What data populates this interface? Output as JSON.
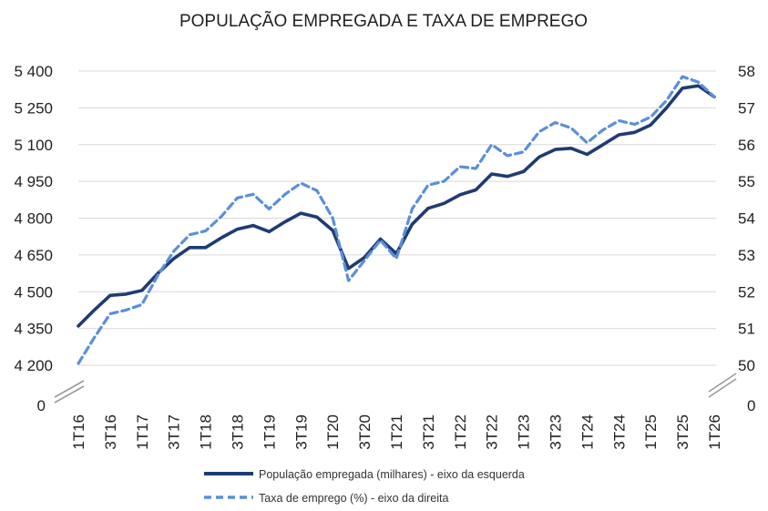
{
  "chart_data": {
    "type": "line",
    "title": "POPULAÇÃO EMPREGADA E TAXA DE EMPREGO",
    "x": [
      "1T16",
      "2T16",
      "3T16",
      "4T16",
      "1T17",
      "2T17",
      "3T17",
      "4T17",
      "1T18",
      "2T18",
      "3T18",
      "4T18",
      "1T19",
      "2T19",
      "3T19",
      "4T19",
      "1T20",
      "2T20",
      "3T20",
      "4T20",
      "1T21",
      "2T21",
      "3T21",
      "4T21",
      "1T22",
      "2T22",
      "3T22",
      "4T22",
      "1T23",
      "2T23",
      "3T23",
      "4T23",
      "1T24",
      "2T24",
      "3T24",
      "4T24",
      "1T25",
      "2T25",
      "3T25",
      "4T25",
      "1T26"
    ],
    "x_tick_labels": [
      "1T16",
      "3T16",
      "1T17",
      "3T17",
      "1T18",
      "3T18",
      "1T19",
      "3T19",
      "1T20",
      "3T20",
      "1T21",
      "3T21",
      "1T22",
      "3T22",
      "1T23",
      "3T23",
      "1T24",
      "3T24",
      "1T25",
      "3T25",
      "1T26"
    ],
    "y_left": {
      "ticks": [
        "4 200",
        "4 350",
        "4 500",
        "4 650",
        "4 800",
        "4 950",
        "5 100",
        "5 250",
        "5 400"
      ],
      "tick_values": [
        4200,
        4350,
        4500,
        4650,
        4800,
        4950,
        5100,
        5250,
        5400
      ],
      "zero_label": "0",
      "range": [
        4200,
        5400
      ],
      "axis_break": true
    },
    "y_right": {
      "ticks": [
        "50",
        "51",
        "52",
        "53",
        "54",
        "55",
        "56",
        "57",
        "58"
      ],
      "tick_values": [
        50,
        51,
        52,
        53,
        54,
        55,
        56,
        57,
        58
      ],
      "zero_label": "0",
      "range": [
        50,
        58
      ],
      "axis_break": true
    },
    "series": [
      {
        "name": "População empregada (milhares) - eixo da esquerda",
        "axis": "left",
        "style": "solid",
        "color": "#1f3b73",
        "values": [
          4360,
          4425,
          4485,
          4490,
          4505,
          4575,
          4635,
          4680,
          4680,
          4720,
          4755,
          4770,
          4745,
          4785,
          4820,
          4805,
          4750,
          4595,
          4640,
          4715,
          4655,
          4775,
          4840,
          4860,
          4895,
          4915,
          4980,
          4970,
          4990,
          5050,
          5080,
          5085,
          5060,
          5100,
          5140,
          5150,
          5180,
          5250,
          5330,
          5340,
          5295
        ]
      },
      {
        "name": "Taxa de emprego (%) - eixo da direita",
        "axis": "right",
        "style": "dashed",
        "color": "#5b8fd8",
        "values": [
          50.05,
          50.75,
          51.4,
          51.5,
          51.65,
          52.45,
          53.1,
          53.55,
          53.65,
          54.05,
          54.55,
          54.65,
          54.25,
          54.65,
          54.95,
          54.75,
          54.0,
          52.3,
          52.85,
          53.4,
          52.9,
          54.25,
          54.9,
          55.0,
          55.4,
          55.35,
          56.0,
          55.7,
          55.8,
          56.35,
          56.6,
          56.45,
          56.05,
          56.4,
          56.65,
          56.55,
          56.75,
          57.2,
          57.85,
          57.7,
          57.3
        ]
      }
    ],
    "grid": "horizontal",
    "legend_placement": "bottom"
  }
}
